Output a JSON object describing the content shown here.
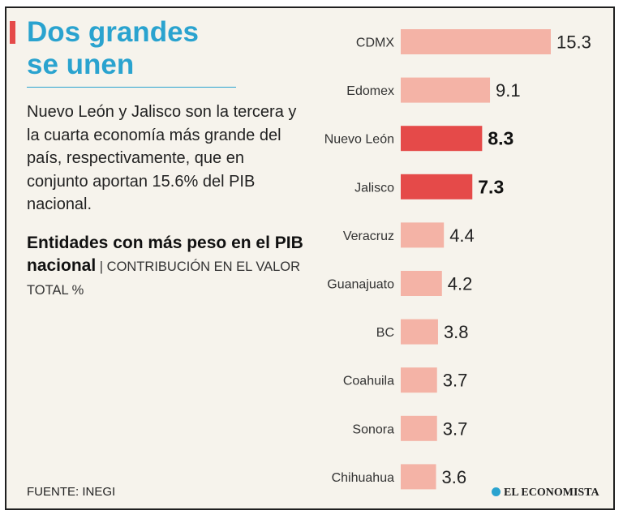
{
  "title_line1": "Dos grandes",
  "title_line2": "se unen",
  "description": "Nuevo León y Jalisco son la tercera y la cuarta economía más grande del país, respectivamente, que en conjunto aportan 15.6% del PIB nacional.",
  "subtitle_bold": "Entidades con más peso en el PIB nacional",
  "subtitle_separator": " | ",
  "subtitle_light": "CONTRIBUCIÓN EN EL VALOR TOTAL %",
  "source": "FUENTE: INEGI",
  "logo_text": "EL ECONOMISTA",
  "colors": {
    "accent": "#e54a49",
    "bar": "#f4b3a6",
    "highlight": "#e54a49",
    "title": "#2aa3cf",
    "background": "#f6f3ec"
  },
  "chart_data": {
    "type": "bar",
    "orientation": "horizontal",
    "title": "Entidades con más peso en el PIB nacional",
    "ylabel": "CONTRIBUCIÓN EN EL VALOR TOTAL %",
    "categories": [
      "CDMX",
      "Edomex",
      "Nuevo León",
      "Jalisco",
      "Veracruz",
      "Guanajuato",
      "BC",
      "Coahuila",
      "Sonora",
      "Chihuahua"
    ],
    "values": [
      15.3,
      9.1,
      8.3,
      7.3,
      4.4,
      4.2,
      3.8,
      3.7,
      3.7,
      3.6
    ],
    "value_labels": [
      "15.3",
      "9.1",
      "8.3",
      "7.3",
      "4.4",
      "4.2",
      "3.8",
      "3.7",
      "3.7",
      "3.6"
    ],
    "highlighted": [
      "Nuevo León",
      "Jalisco"
    ],
    "xlim": [
      0,
      15.3
    ],
    "grid": false,
    "legend": "none"
  }
}
